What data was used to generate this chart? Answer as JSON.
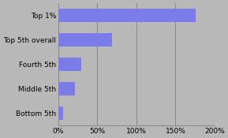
{
  "categories": [
    "Top 1%",
    "Top 5th overall",
    "Fourth 5th",
    "Middle 5th",
    "Bottom 5th"
  ],
  "values": [
    176,
    69,
    29,
    21,
    6
  ],
  "bar_color": "#7b7ce8",
  "background_color": "#b8b8b8",
  "plot_bg_color": "#b8b8b8",
  "xlim": [
    0,
    200
  ],
  "xticks": [
    0,
    50,
    100,
    150,
    200
  ],
  "bar_height": 0.55,
  "label_fontsize": 6.5,
  "tick_fontsize": 6.5
}
